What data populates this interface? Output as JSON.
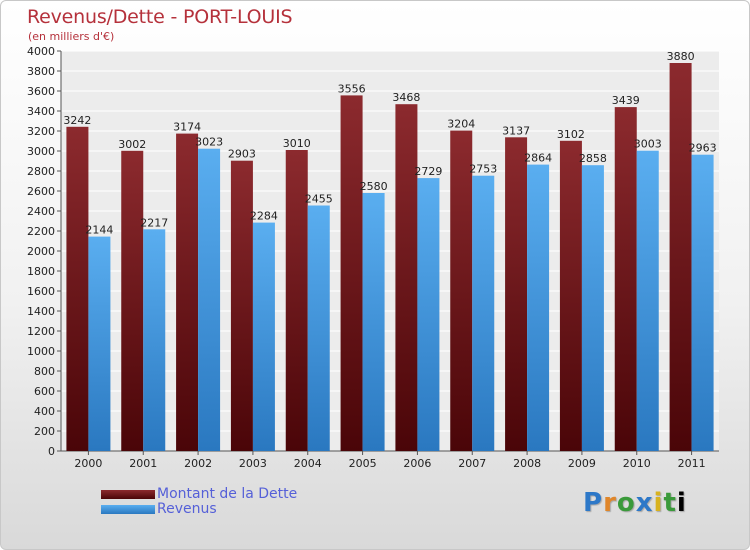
{
  "chart_data": {
    "type": "bar",
    "title": "Revenus/Dette - PORT-LOUIS",
    "subtitle": "(en milliers d'€)",
    "categories": [
      "2000",
      "2001",
      "2002",
      "2003",
      "2004",
      "2005",
      "2006",
      "2007",
      "2008",
      "2009",
      "2010",
      "2011"
    ],
    "series": [
      {
        "name": "Montant de la Dette",
        "color": "#7a1518",
        "values": [
          3242,
          3002,
          3174,
          2903,
          3010,
          3556,
          3468,
          3204,
          3137,
          3102,
          3439,
          3880
        ]
      },
      {
        "name": "Revenus",
        "color": "#4a9fe0",
        "values": [
          2144,
          2217,
          3023,
          2284,
          2455,
          2580,
          2729,
          2753,
          2864,
          2858,
          3003,
          2963
        ]
      }
    ],
    "ylim": [
      0,
      4000
    ],
    "ytick_step": 200,
    "grid": true,
    "legend_position": "bottom-left"
  },
  "logo": {
    "letters": [
      "P",
      "r",
      "o",
      "x",
      "i",
      "t",
      "i"
    ]
  }
}
